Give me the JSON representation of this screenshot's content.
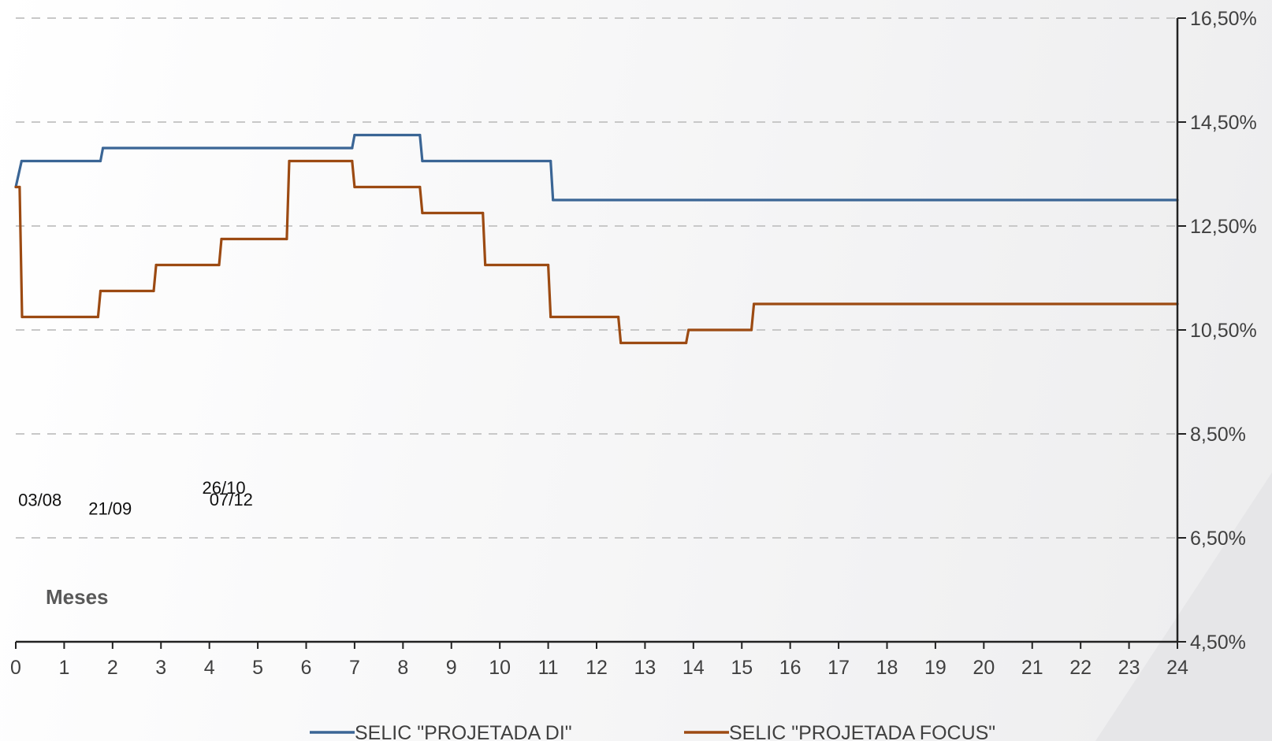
{
  "chart_data": {
    "type": "line",
    "step": true,
    "xlabel": "Meses",
    "ylabel": "",
    "xlim": [
      0,
      24
    ],
    "ylim": [
      4.5,
      16.5
    ],
    "y_axis_side": "right",
    "grid": "horizontal dashed",
    "legend_position": "bottom",
    "x_ticks": [
      "0",
      "1",
      "2",
      "3",
      "4",
      "5",
      "6",
      "7",
      "8",
      "9",
      "10",
      "11",
      "12",
      "13",
      "14",
      "15",
      "16",
      "17",
      "18",
      "19",
      "20",
      "21",
      "22",
      "23",
      "24"
    ],
    "y_ticks": [
      {
        "value": 16.5,
        "label": "16,50%"
      },
      {
        "value": 14.5,
        "label": "14,50%"
      },
      {
        "value": 12.5,
        "label": "12,50%"
      },
      {
        "value": 10.5,
        "label": "10,50%"
      },
      {
        "value": 8.5,
        "label": "8,50%"
      },
      {
        "value": 6.5,
        "label": "6,50%"
      },
      {
        "value": 4.5,
        "label": "4,50%"
      }
    ],
    "annotations": [
      {
        "text": "03/08",
        "x": 0.5,
        "y": 7.11
      },
      {
        "text": "21/09",
        "x": 1.95,
        "y": 6.95
      },
      {
        "text": "26/10",
        "x": 4.3,
        "y": 7.35
      },
      {
        "text": "07/12",
        "x": 4.45,
        "y": 7.12
      }
    ],
    "series": [
      {
        "name": "SELIC \"PROJETADA DI\"",
        "color": "#3a6595",
        "points": [
          [
            0,
            13.25
          ],
          [
            0.12,
            13.75
          ],
          [
            1.75,
            13.75
          ],
          [
            1.8,
            14.0
          ],
          [
            6.95,
            14.0
          ],
          [
            7.0,
            14.25
          ],
          [
            8.35,
            14.25
          ],
          [
            8.4,
            13.75
          ],
          [
            11.05,
            13.75
          ],
          [
            11.1,
            13.0
          ],
          [
            24,
            13.0
          ]
        ]
      },
      {
        "name": "SELIC \"PROJETADA FOCUS\"",
        "color": "#9c4a12",
        "points": [
          [
            0,
            13.25
          ],
          [
            0.08,
            13.25
          ],
          [
            0.13,
            10.75
          ],
          [
            1.7,
            10.75
          ],
          [
            1.75,
            11.25
          ],
          [
            2.85,
            11.25
          ],
          [
            2.9,
            11.75
          ],
          [
            4.2,
            11.75
          ],
          [
            4.25,
            12.25
          ],
          [
            5.6,
            12.25
          ],
          [
            5.65,
            13.75
          ],
          [
            6.95,
            13.75
          ],
          [
            7.0,
            13.25
          ],
          [
            8.35,
            13.25
          ],
          [
            8.4,
            12.75
          ],
          [
            9.65,
            12.75
          ],
          [
            9.7,
            11.75
          ],
          [
            11.0,
            11.75
          ],
          [
            11.05,
            10.75
          ],
          [
            12.45,
            10.75
          ],
          [
            12.5,
            10.25
          ],
          [
            13.85,
            10.25
          ],
          [
            13.9,
            10.5
          ],
          [
            15.2,
            10.5
          ],
          [
            15.25,
            11.0
          ],
          [
            24,
            11.0
          ]
        ]
      }
    ]
  }
}
